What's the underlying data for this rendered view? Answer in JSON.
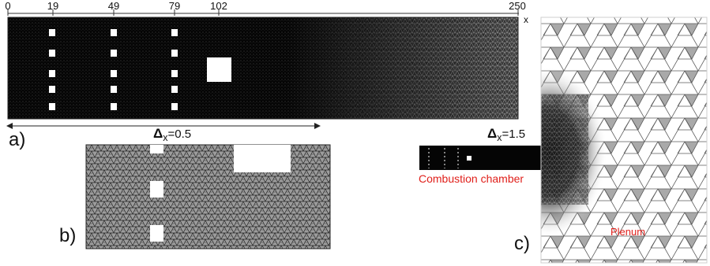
{
  "axis": {
    "ticks": [
      "0",
      "19",
      "49",
      "79",
      "102",
      "250"
    ],
    "x_label": "x"
  },
  "panels": {
    "a": "a)",
    "b": "b)",
    "c": "c)"
  },
  "resolution": {
    "fine_symbol": "Δ",
    "fine_sub": "x",
    "fine_value": "=0.5",
    "coarse_symbol": "Δ",
    "coarse_sub": "x",
    "coarse_value": "=1.5"
  },
  "labels": {
    "combustion_chamber": "Combustion chamber",
    "plenum": "Plenum"
  },
  "colors": {
    "annotation": "#e0201b",
    "mesh_dark": "#0b0b0b",
    "mesh_gray": "#3a3a3a"
  }
}
